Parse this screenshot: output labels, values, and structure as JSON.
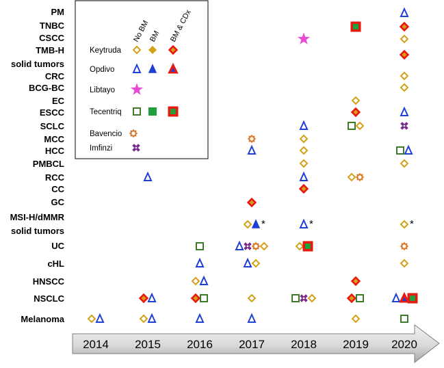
{
  "chart_data": {
    "type": "scatter",
    "title": "",
    "xlabel": "",
    "ylabel": "",
    "years": [
      "2014",
      "2015",
      "2016",
      "2017",
      "2018",
      "2019",
      "2020"
    ],
    "indications": [
      {
        "label": "PM"
      },
      {
        "label": "TNBC"
      },
      {
        "label": "CSCC"
      },
      {
        "label": "TMB-H",
        "label2": "solid tumors"
      },
      {
        "label": "CRC"
      },
      {
        "label": "BCG-BC"
      },
      {
        "label": "EC"
      },
      {
        "label": "ESCC"
      },
      {
        "label": "SCLC"
      },
      {
        "label": "MCC"
      },
      {
        "label": "HCC"
      },
      {
        "label": "PMBCL"
      },
      {
        "label": "RCC"
      },
      {
        "label": "CC"
      },
      {
        "label": "GC"
      },
      {
        "label": "MSI-H/dMMR",
        "label2": "solid tumors"
      },
      {
        "label": "UC"
      },
      {
        "label": "cHL"
      },
      {
        "label": "HNSCC"
      },
      {
        "label": "NSCLC"
      },
      {
        "label": "Melanoma"
      }
    ],
    "legend": {
      "columns": [
        "No BM",
        "BM",
        "BM & CDx"
      ],
      "drugs": [
        {
          "name": "Keytruda",
          "shape": "diamond",
          "color": "#d4a017",
          "variants": [
            "No BM",
            "BM",
            "BM & CDx"
          ]
        },
        {
          "name": "Opdivo",
          "shape": "triangle",
          "color": "#1f3fd6",
          "variants": [
            "No BM",
            "BM",
            "BM & CDx"
          ]
        },
        {
          "name": "Libtayo",
          "shape": "star",
          "color": "#e54ed4",
          "variants": [
            "No BM"
          ]
        },
        {
          "name": "Tecentriq",
          "shape": "square",
          "color": "#3d7a2a",
          "variants": [
            "No BM",
            "BM",
            "BM & CDx"
          ]
        },
        {
          "name": "Bavencio",
          "shape": "gear",
          "color": "#d9782a",
          "variants": [
            "No BM"
          ]
        },
        {
          "name": "Imfinzi",
          "shape": "cross",
          "color": "#7b2d8e",
          "variants": [
            "No BM"
          ]
        }
      ]
    },
    "approvals": [
      {
        "row": "Melanoma",
        "year": "2014",
        "marks": [
          {
            "drug": "Keytruda",
            "variant": "No BM"
          },
          {
            "drug": "Opdivo",
            "variant": "No BM"
          }
        ]
      },
      {
        "row": "Melanoma",
        "year": "2015",
        "marks": [
          {
            "drug": "Keytruda",
            "variant": "No BM"
          },
          {
            "drug": "Opdivo",
            "variant": "No BM"
          }
        ]
      },
      {
        "row": "Melanoma",
        "year": "2016",
        "marks": [
          {
            "drug": "Opdivo",
            "variant": "No BM"
          }
        ]
      },
      {
        "row": "Melanoma",
        "year": "2017",
        "marks": [
          {
            "drug": "Opdivo",
            "variant": "No BM"
          }
        ]
      },
      {
        "row": "Melanoma",
        "year": "2019",
        "marks": [
          {
            "drug": "Keytruda",
            "variant": "No BM"
          }
        ]
      },
      {
        "row": "Melanoma",
        "year": "2020",
        "marks": [
          {
            "drug": "Tecentriq",
            "variant": "No BM"
          }
        ]
      },
      {
        "row": "NSCLC",
        "year": "2015",
        "marks": [
          {
            "drug": "Keytruda",
            "variant": "BM & CDx"
          },
          {
            "drug": "Opdivo",
            "variant": "No BM"
          }
        ]
      },
      {
        "row": "NSCLC",
        "year": "2016",
        "marks": [
          {
            "drug": "Keytruda",
            "variant": "BM & CDx"
          },
          {
            "drug": "Tecentriq",
            "variant": "No BM"
          }
        ]
      },
      {
        "row": "NSCLC",
        "year": "2017",
        "marks": [
          {
            "drug": "Keytruda",
            "variant": "No BM"
          }
        ]
      },
      {
        "row": "NSCLC",
        "year": "2018",
        "marks": [
          {
            "drug": "Tecentriq",
            "variant": "No BM"
          },
          {
            "drug": "Imfinzi",
            "variant": "No BM"
          },
          {
            "drug": "Keytruda",
            "variant": "No BM"
          }
        ]
      },
      {
        "row": "NSCLC",
        "year": "2019",
        "marks": [
          {
            "drug": "Keytruda",
            "variant": "BM & CDx"
          },
          {
            "drug": "Tecentriq",
            "variant": "No BM"
          }
        ]
      },
      {
        "row": "NSCLC",
        "year": "2020",
        "marks": [
          {
            "drug": "Opdivo",
            "variant": "No BM"
          },
          {
            "drug": "Opdivo",
            "variant": "BM & CDx"
          },
          {
            "drug": "Tecentriq",
            "variant": "BM & CDx"
          }
        ]
      },
      {
        "row": "HNSCC",
        "year": "2016",
        "marks": [
          {
            "drug": "Keytruda",
            "variant": "No BM"
          },
          {
            "drug": "Opdivo",
            "variant": "No BM"
          }
        ]
      },
      {
        "row": "HNSCC",
        "year": "2019",
        "marks": [
          {
            "drug": "Keytruda",
            "variant": "BM & CDx"
          }
        ]
      },
      {
        "row": "cHL",
        "year": "2016",
        "marks": [
          {
            "drug": "Opdivo",
            "variant": "No BM"
          }
        ]
      },
      {
        "row": "cHL",
        "year": "2017",
        "marks": [
          {
            "drug": "Opdivo",
            "variant": "No BM"
          },
          {
            "drug": "Keytruda",
            "variant": "No BM"
          }
        ]
      },
      {
        "row": "cHL",
        "year": "2020",
        "marks": [
          {
            "drug": "Keytruda",
            "variant": "No BM"
          }
        ]
      },
      {
        "row": "UC",
        "year": "2016",
        "marks": [
          {
            "drug": "Tecentriq",
            "variant": "No BM"
          }
        ]
      },
      {
        "row": "UC",
        "year": "2017",
        "marks": [
          {
            "drug": "Opdivo",
            "variant": "No BM"
          },
          {
            "drug": "Imfinzi",
            "variant": "No BM"
          },
          {
            "drug": "Bavencio",
            "variant": "No BM"
          },
          {
            "drug": "Keytruda",
            "variant": "No BM"
          }
        ]
      },
      {
        "row": "UC",
        "year": "2018",
        "marks": [
          {
            "drug": "Keytruda",
            "variant": "No BM"
          },
          {
            "drug": "Tecentriq",
            "variant": "BM & CDx"
          }
        ]
      },
      {
        "row": "UC",
        "year": "2020",
        "marks": [
          {
            "drug": "Bavencio",
            "variant": "No BM"
          }
        ]
      },
      {
        "row": "MSI-H/dMMR",
        "year": "2017",
        "marks": [
          {
            "drug": "Keytruda",
            "variant": "No BM"
          },
          {
            "drug": "Opdivo",
            "variant": "BM"
          }
        ],
        "note": "*"
      },
      {
        "row": "MSI-H/dMMR",
        "year": "2018",
        "marks": [
          {
            "drug": "Opdivo",
            "variant": "No BM"
          }
        ],
        "note": "*"
      },
      {
        "row": "MSI-H/dMMR",
        "year": "2020",
        "marks": [
          {
            "drug": "Keytruda",
            "variant": "No BM"
          }
        ],
        "note": "*"
      },
      {
        "row": "GC",
        "year": "2017",
        "marks": [
          {
            "drug": "Keytruda",
            "variant": "BM & CDx"
          }
        ]
      },
      {
        "row": "CC",
        "year": "2018",
        "marks": [
          {
            "drug": "Keytruda",
            "variant": "BM & CDx"
          }
        ]
      },
      {
        "row": "RCC",
        "year": "2015",
        "marks": [
          {
            "drug": "Opdivo",
            "variant": "No BM"
          }
        ]
      },
      {
        "row": "RCC",
        "year": "2018",
        "marks": [
          {
            "drug": "Opdivo",
            "variant": "No BM"
          }
        ]
      },
      {
        "row": "RCC",
        "year": "2019",
        "marks": [
          {
            "drug": "Keytruda",
            "variant": "No BM"
          },
          {
            "drug": "Bavencio",
            "variant": "No BM"
          }
        ]
      },
      {
        "row": "PMBCL",
        "year": "2018",
        "marks": [
          {
            "drug": "Keytruda",
            "variant": "No BM"
          }
        ]
      },
      {
        "row": "PMBCL",
        "year": "2020",
        "marks": [
          {
            "drug": "Keytruda",
            "variant": "No BM"
          }
        ]
      },
      {
        "row": "HCC",
        "year": "2017",
        "marks": [
          {
            "drug": "Opdivo",
            "variant": "No BM"
          }
        ]
      },
      {
        "row": "HCC",
        "year": "2018",
        "marks": [
          {
            "drug": "Keytruda",
            "variant": "No BM"
          }
        ]
      },
      {
        "row": "HCC",
        "year": "2020",
        "marks": [
          {
            "drug": "Tecentriq",
            "variant": "No BM"
          },
          {
            "drug": "Opdivo",
            "variant": "No BM"
          }
        ]
      },
      {
        "row": "MCC",
        "year": "2017",
        "marks": [
          {
            "drug": "Bavencio",
            "variant": "No BM"
          }
        ]
      },
      {
        "row": "MCC",
        "year": "2018",
        "marks": [
          {
            "drug": "Keytruda",
            "variant": "No BM"
          }
        ]
      },
      {
        "row": "SCLC",
        "year": "2018",
        "marks": [
          {
            "drug": "Opdivo",
            "variant": "No BM"
          }
        ]
      },
      {
        "row": "SCLC",
        "year": "2019",
        "marks": [
          {
            "drug": "Tecentriq",
            "variant": "No BM"
          },
          {
            "drug": "Keytruda",
            "variant": "No BM"
          }
        ]
      },
      {
        "row": "SCLC",
        "year": "2020",
        "marks": [
          {
            "drug": "Imfinzi",
            "variant": "No BM"
          }
        ]
      },
      {
        "row": "ESCC",
        "year": "2019",
        "marks": [
          {
            "drug": "Keytruda",
            "variant": "BM & CDx"
          }
        ]
      },
      {
        "row": "ESCC",
        "year": "2020",
        "marks": [
          {
            "drug": "Opdivo",
            "variant": "No BM"
          }
        ]
      },
      {
        "row": "EC",
        "year": "2019",
        "marks": [
          {
            "drug": "Keytruda",
            "variant": "No BM"
          }
        ]
      },
      {
        "row": "BCG-BC",
        "year": "2020",
        "marks": [
          {
            "drug": "Keytruda",
            "variant": "No BM"
          }
        ]
      },
      {
        "row": "CRC",
        "year": "2020",
        "marks": [
          {
            "drug": "Keytruda",
            "variant": "No BM"
          }
        ]
      },
      {
        "row": "TMB-H",
        "year": "2020",
        "marks": [
          {
            "drug": "Keytruda",
            "variant": "BM & CDx"
          }
        ]
      },
      {
        "row": "CSCC",
        "year": "2018",
        "marks": [
          {
            "drug": "Libtayo",
            "variant": "No BM"
          }
        ]
      },
      {
        "row": "CSCC",
        "year": "2020",
        "marks": [
          {
            "drug": "Keytruda",
            "variant": "No BM"
          }
        ]
      },
      {
        "row": "TNBC",
        "year": "2019",
        "marks": [
          {
            "drug": "Tecentriq",
            "variant": "BM & CDx"
          }
        ]
      },
      {
        "row": "TNBC",
        "year": "2020",
        "marks": [
          {
            "drug": "Keytruda",
            "variant": "BM & CDx"
          }
        ]
      },
      {
        "row": "PM",
        "year": "2020",
        "marks": [
          {
            "drug": "Opdivo",
            "variant": "No BM"
          }
        ]
      }
    ]
  }
}
